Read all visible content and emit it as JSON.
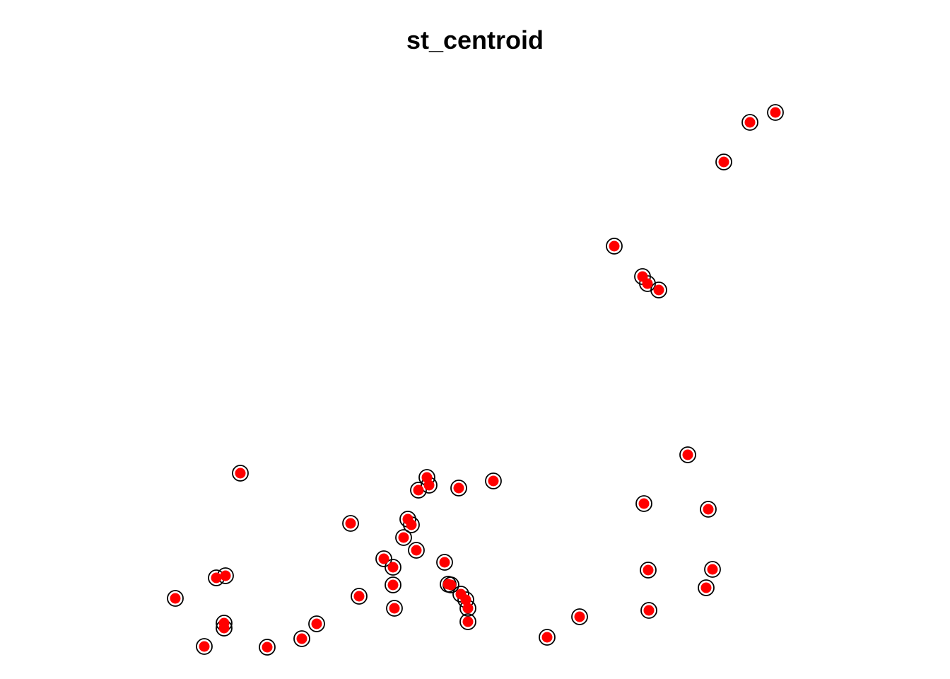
{
  "chart_data": {
    "type": "scatter",
    "title": "st_centroid",
    "xlabel": "",
    "ylabel": "",
    "axes": "hidden",
    "grid": false,
    "series": [
      {
        "marker": "open-circle",
        "stroke_color": "#000000",
        "points": [
          [
            1097,
            159
          ],
          [
            1061,
            173
          ],
          [
            1024,
            229
          ],
          [
            869,
            348
          ],
          [
            909,
            391
          ],
          [
            916,
            401
          ],
          [
            932,
            410
          ],
          [
            973,
            643
          ],
          [
            340,
            669
          ],
          [
            604,
            675
          ],
          [
            607,
            686
          ],
          [
            592,
            693
          ],
          [
            649,
            690
          ],
          [
            698,
            680
          ],
          [
            911,
            712
          ],
          [
            1002,
            720
          ],
          [
            496,
            740
          ],
          [
            577,
            734
          ],
          [
            582,
            742
          ],
          [
            571,
            760
          ],
          [
            589,
            778
          ],
          [
            543,
            790
          ],
          [
            556,
            802
          ],
          [
            629,
            795
          ],
          [
            917,
            806
          ],
          [
            1008,
            805
          ],
          [
            306,
            817
          ],
          [
            319,
            814
          ],
          [
            556,
            827
          ],
          [
            634,
            826
          ],
          [
            638,
            827
          ],
          [
            999,
            831
          ],
          [
            248,
            846
          ],
          [
            508,
            843
          ],
          [
            652,
            840
          ],
          [
            659,
            848
          ],
          [
            662,
            860
          ],
          [
            558,
            860
          ],
          [
            918,
            863
          ],
          [
            820,
            872
          ],
          [
            662,
            879
          ],
          [
            317,
            881
          ],
          [
            317,
            888
          ],
          [
            448,
            882
          ],
          [
            427,
            903
          ],
          [
            774,
            901
          ],
          [
            289,
            914
          ],
          [
            378,
            915
          ]
        ]
      },
      {
        "marker": "filled-circle",
        "fill_color": "#ff0000",
        "points": [
          [
            1097,
            159
          ],
          [
            1061,
            173
          ],
          [
            1024,
            229
          ],
          [
            869,
            348
          ],
          [
            909,
            391
          ],
          [
            916,
            401
          ],
          [
            932,
            410
          ],
          [
            973,
            643
          ],
          [
            340,
            669
          ],
          [
            604,
            675
          ],
          [
            607,
            686
          ],
          [
            592,
            693
          ],
          [
            649,
            690
          ],
          [
            698,
            680
          ],
          [
            911,
            712
          ],
          [
            1002,
            720
          ],
          [
            496,
            740
          ],
          [
            577,
            734
          ],
          [
            582,
            742
          ],
          [
            571,
            760
          ],
          [
            589,
            778
          ],
          [
            543,
            790
          ],
          [
            556,
            802
          ],
          [
            629,
            795
          ],
          [
            917,
            806
          ],
          [
            1008,
            805
          ],
          [
            306,
            817
          ],
          [
            319,
            814
          ],
          [
            556,
            827
          ],
          [
            634,
            826
          ],
          [
            638,
            827
          ],
          [
            999,
            831
          ],
          [
            248,
            846
          ],
          [
            508,
            843
          ],
          [
            652,
            840
          ],
          [
            659,
            848
          ],
          [
            662,
            860
          ],
          [
            558,
            860
          ],
          [
            918,
            863
          ],
          [
            820,
            872
          ],
          [
            662,
            879
          ],
          [
            317,
            881
          ],
          [
            317,
            888
          ],
          [
            448,
            882
          ],
          [
            427,
            903
          ],
          [
            774,
            901
          ],
          [
            289,
            914
          ],
          [
            378,
            915
          ]
        ]
      }
    ]
  }
}
